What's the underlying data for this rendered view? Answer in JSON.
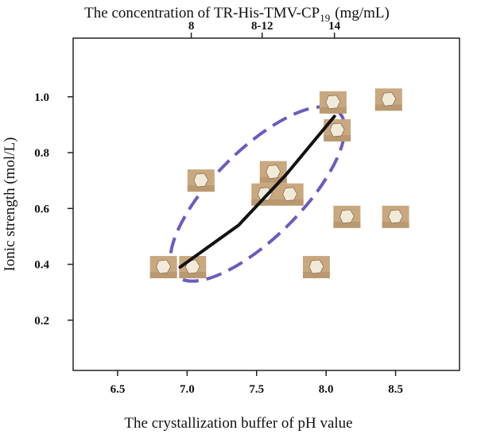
{
  "chart_data": {
    "type": "scatter",
    "top_title": "The concentration of TR-His-TMV-CP",
    "top_title_sub": "19",
    "top_title_unit": "(mg/mL)",
    "x_label": "The crystallization buffer of pH value",
    "y_label": "Ionic strength (mol/L)",
    "xlim": [
      6.18,
      8.96
    ],
    "ylim": [
      0.02,
      1.21
    ],
    "xticks": [
      {
        "value": 6.5,
        "label": "6.5"
      },
      {
        "value": 7.0,
        "label": "7.0"
      },
      {
        "value": 7.5,
        "label": "7.5"
      },
      {
        "value": 8.0,
        "label": "8.0"
      },
      {
        "value": 8.5,
        "label": "8.5"
      }
    ],
    "yticks": [
      {
        "value": 0.2,
        "label": "0.2"
      },
      {
        "value": 0.4,
        "label": "0.4"
      },
      {
        "value": 0.6,
        "label": "0.6"
      },
      {
        "value": 0.8,
        "label": "0.8"
      },
      {
        "value": 1.0,
        "label": "1.0"
      }
    ],
    "top_ticks": [
      {
        "value": 7.03,
        "label": "8"
      },
      {
        "value": 7.54,
        "label": "8-12"
      },
      {
        "value": 8.06,
        "label": "14"
      }
    ],
    "x": [
      6.83,
      7.04,
      7.1,
      7.62,
      7.56,
      7.74,
      8.05,
      8.08,
      8.45,
      8.15,
      8.5,
      7.93
    ],
    "y": [
      0.39,
      0.39,
      0.7,
      0.73,
      0.65,
      0.65,
      0.98,
      0.88,
      0.99,
      0.57,
      0.57,
      0.39
    ],
    "curve": {
      "x": [
        6.95,
        7.37,
        7.71,
        8.06
      ],
      "y": [
        0.39,
        0.54,
        0.72,
        0.93
      ]
    }
  }
}
